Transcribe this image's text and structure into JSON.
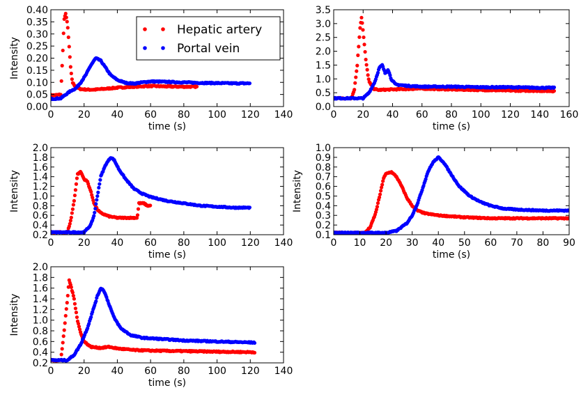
{
  "chart_data": [
    {
      "type": "scatter",
      "xlabel": "time (s)",
      "ylabel": "Intensity",
      "xlim": [
        0,
        140
      ],
      "ylim": [
        0.0,
        0.4
      ],
      "xticks": [
        0,
        20,
        40,
        60,
        80,
        100,
        120,
        140
      ],
      "yticks": [
        0.0,
        0.05,
        0.1,
        0.15,
        0.2,
        0.25,
        0.3,
        0.35,
        0.4
      ],
      "ytick_decimals": 2,
      "legend": {
        "position": "top-right",
        "entries": [
          "Hepatic artery",
          "Portal vein"
        ]
      },
      "series": [
        {
          "name": "Hepatic artery",
          "color": "#ff0000",
          "x_end": 88,
          "points": [
            [
              0,
              0.046
            ],
            [
              4,
              0.048
            ],
            [
              6,
              0.05
            ],
            [
              7,
              0.2
            ],
            [
              8,
              0.36
            ],
            [
              9,
              0.385
            ],
            [
              10,
              0.34
            ],
            [
              11,
              0.25
            ],
            [
              12,
              0.15
            ],
            [
              13,
              0.1
            ],
            [
              15,
              0.08
            ],
            [
              18,
              0.072
            ],
            [
              22,
              0.07
            ],
            [
              26,
              0.07
            ],
            [
              30,
              0.072
            ],
            [
              40,
              0.078
            ],
            [
              50,
              0.082
            ],
            [
              60,
              0.085
            ],
            [
              70,
              0.083
            ],
            [
              80,
              0.082
            ],
            [
              88,
              0.082
            ]
          ]
        },
        {
          "name": "Portal vein",
          "color": "#0000ff",
          "x_end": 120,
          "points": [
            [
              0,
              0.032
            ],
            [
              6,
              0.034
            ],
            [
              9,
              0.05
            ],
            [
              12,
              0.065
            ],
            [
              15,
              0.075
            ],
            [
              18,
              0.1
            ],
            [
              21,
              0.13
            ],
            [
              24,
              0.17
            ],
            [
              27,
              0.2
            ],
            [
              30,
              0.19
            ],
            [
              33,
              0.16
            ],
            [
              36,
              0.13
            ],
            [
              40,
              0.11
            ],
            [
              45,
              0.098
            ],
            [
              50,
              0.095
            ],
            [
              55,
              0.1
            ],
            [
              60,
              0.104
            ],
            [
              70,
              0.102
            ],
            [
              80,
              0.1
            ],
            [
              90,
              0.098
            ],
            [
              100,
              0.097
            ],
            [
              110,
              0.096
            ],
            [
              120,
              0.096
            ]
          ]
        }
      ]
    },
    {
      "type": "scatter",
      "xlabel": "time (s)",
      "ylabel": "",
      "xlim": [
        0,
        160
      ],
      "ylim": [
        0.0,
        3.5
      ],
      "xticks": [
        0,
        20,
        40,
        60,
        80,
        100,
        120,
        140,
        160
      ],
      "yticks": [
        0.0,
        0.5,
        1.0,
        1.5,
        2.0,
        2.5,
        3.0,
        3.5
      ],
      "ytick_decimals": 1,
      "series": [
        {
          "name": "Hepatic artery",
          "color": "#ff0000",
          "points": [
            [
              0,
              0.3
            ],
            [
              12,
              0.3
            ],
            [
              14,
              0.6
            ],
            [
              16,
              1.5
            ],
            [
              18,
              2.9
            ],
            [
              19,
              3.25
            ],
            [
              20,
              2.7
            ],
            [
              22,
              1.6
            ],
            [
              24,
              0.9
            ],
            [
              27,
              0.65
            ],
            [
              30,
              0.6
            ],
            [
              40,
              0.62
            ],
            [
              60,
              0.65
            ],
            [
              80,
              0.62
            ],
            [
              100,
              0.6
            ],
            [
              120,
              0.58
            ],
            [
              140,
              0.57
            ],
            [
              150,
              0.56
            ]
          ]
        },
        {
          "name": "Portal vein",
          "color": "#0000ff",
          "points": [
            [
              0,
              0.3
            ],
            [
              20,
              0.3
            ],
            [
              24,
              0.5
            ],
            [
              28,
              0.9
            ],
            [
              31,
              1.4
            ],
            [
              33,
              1.5
            ],
            [
              35,
              1.2
            ],
            [
              37,
              1.35
            ],
            [
              39,
              1.0
            ],
            [
              42,
              0.8
            ],
            [
              50,
              0.75
            ],
            [
              60,
              0.72
            ],
            [
              80,
              0.72
            ],
            [
              100,
              0.7
            ],
            [
              120,
              0.7
            ],
            [
              140,
              0.68
            ],
            [
              150,
              0.68
            ]
          ]
        }
      ]
    },
    {
      "type": "scatter",
      "xlabel": "time (s)",
      "ylabel": "Intensity",
      "xlim": [
        0,
        140
      ],
      "ylim": [
        0.2,
        2.0
      ],
      "xticks": [
        0,
        20,
        40,
        60,
        80,
        100,
        120,
        140
      ],
      "yticks": [
        0.2,
        0.4,
        0.6,
        0.8,
        1.0,
        1.2,
        1.4,
        1.6,
        1.8,
        2.0
      ],
      "ytick_decimals": 1,
      "series": [
        {
          "name": "Hepatic artery",
          "color": "#ff0000",
          "points": [
            [
              0,
              0.25
            ],
            [
              10,
              0.25
            ],
            [
              12,
              0.5
            ],
            [
              14,
              0.9
            ],
            [
              16,
              1.45
            ],
            [
              18,
              1.5
            ],
            [
              20,
              1.35
            ],
            [
              22,
              1.3
            ],
            [
              24,
              1.1
            ],
            [
              26,
              0.85
            ],
            [
              28,
              0.72
            ],
            [
              30,
              0.65
            ],
            [
              35,
              0.58
            ],
            [
              40,
              0.55
            ],
            [
              45,
              0.55
            ],
            [
              50,
              0.55
            ],
            [
              52,
              0.55
            ],
            [
              53,
              0.85
            ],
            [
              56,
              0.85
            ],
            [
              58,
              0.8
            ],
            [
              60,
              0.8
            ]
          ]
        },
        {
          "name": "Portal vein",
          "color": "#0000ff",
          "points": [
            [
              0,
              0.25
            ],
            [
              20,
              0.25
            ],
            [
              24,
              0.4
            ],
            [
              26,
              0.6
            ],
            [
              28,
              1.0
            ],
            [
              30,
              1.4
            ],
            [
              33,
              1.65
            ],
            [
              36,
              1.8
            ],
            [
              38,
              1.75
            ],
            [
              41,
              1.55
            ],
            [
              45,
              1.35
            ],
            [
              50,
              1.15
            ],
            [
              55,
              1.05
            ],
            [
              60,
              0.98
            ],
            [
              70,
              0.9
            ],
            [
              80,
              0.85
            ],
            [
              90,
              0.8
            ],
            [
              100,
              0.78
            ],
            [
              110,
              0.76
            ],
            [
              120,
              0.76
            ]
          ]
        }
      ]
    },
    {
      "type": "scatter",
      "xlabel": "time (s)",
      "ylabel": "Intensity",
      "xlim": [
        0,
        90
      ],
      "ylim": [
        0.1,
        1.0
      ],
      "xticks": [
        0,
        10,
        20,
        30,
        40,
        50,
        60,
        70,
        80,
        90
      ],
      "yticks": [
        0.1,
        0.2,
        0.3,
        0.4,
        0.5,
        0.6,
        0.7,
        0.8,
        0.9,
        1.0
      ],
      "ytick_decimals": 1,
      "series": [
        {
          "name": "Hepatic artery",
          "color": "#ff0000",
          "points": [
            [
              0,
              0.12
            ],
            [
              12,
              0.12
            ],
            [
              14,
              0.18
            ],
            [
              16,
              0.32
            ],
            [
              18,
              0.55
            ],
            [
              19,
              0.68
            ],
            [
              20,
              0.73
            ],
            [
              22,
              0.75
            ],
            [
              24,
              0.7
            ],
            [
              26,
              0.6
            ],
            [
              28,
              0.48
            ],
            [
              30,
              0.4
            ],
            [
              32,
              0.35
            ],
            [
              35,
              0.32
            ],
            [
              40,
              0.3
            ],
            [
              50,
              0.28
            ],
            [
              60,
              0.27
            ],
            [
              70,
              0.27
            ],
            [
              80,
              0.27
            ],
            [
              90,
              0.27
            ]
          ]
        },
        {
          "name": "Portal vein",
          "color": "#0000ff",
          "points": [
            [
              0,
              0.12
            ],
            [
              20,
              0.12
            ],
            [
              24,
              0.14
            ],
            [
              28,
              0.22
            ],
            [
              30,
              0.3
            ],
            [
              32,
              0.42
            ],
            [
              34,
              0.58
            ],
            [
              36,
              0.75
            ],
            [
              38,
              0.85
            ],
            [
              40,
              0.9
            ],
            [
              42,
              0.85
            ],
            [
              45,
              0.72
            ],
            [
              48,
              0.6
            ],
            [
              52,
              0.5
            ],
            [
              56,
              0.44
            ],
            [
              60,
              0.4
            ],
            [
              65,
              0.37
            ],
            [
              70,
              0.36
            ],
            [
              80,
              0.35
            ],
            [
              90,
              0.35
            ]
          ]
        }
      ]
    },
    {
      "type": "scatter",
      "xlabel": "time (s)",
      "ylabel": "Intensity",
      "xlim": [
        0,
        140
      ],
      "ylim": [
        0.2,
        2.0
      ],
      "xticks": [
        0,
        20,
        40,
        60,
        80,
        100,
        120,
        140
      ],
      "yticks": [
        0.2,
        0.4,
        0.6,
        0.8,
        1.0,
        1.2,
        1.4,
        1.6,
        1.8,
        2.0
      ],
      "ytick_decimals": 1,
      "series": [
        {
          "name": "Hepatic artery",
          "color": "#ff0000",
          "points": [
            [
              0,
              0.25
            ],
            [
              6,
              0.25
            ],
            [
              8,
              0.8
            ],
            [
              10,
              1.4
            ],
            [
              11,
              1.75
            ],
            [
              12,
              1.65
            ],
            [
              14,
              1.4
            ],
            [
              16,
              1.0
            ],
            [
              18,
              0.75
            ],
            [
              20,
              0.6
            ],
            [
              24,
              0.5
            ],
            [
              30,
              0.48
            ],
            [
              35,
              0.5
            ],
            [
              40,
              0.47
            ],
            [
              50,
              0.44
            ],
            [
              60,
              0.43
            ],
            [
              80,
              0.42
            ],
            [
              100,
              0.41
            ],
            [
              123,
              0.4
            ]
          ]
        },
        {
          "name": "Portal vein",
          "color": "#0000ff",
          "points": [
            [
              0,
              0.25
            ],
            [
              10,
              0.25
            ],
            [
              14,
              0.35
            ],
            [
              18,
              0.55
            ],
            [
              22,
              0.85
            ],
            [
              25,
              1.15
            ],
            [
              28,
              1.45
            ],
            [
              30,
              1.6
            ],
            [
              32,
              1.55
            ],
            [
              35,
              1.3
            ],
            [
              38,
              1.05
            ],
            [
              42,
              0.85
            ],
            [
              48,
              0.72
            ],
            [
              55,
              0.67
            ],
            [
              65,
              0.65
            ],
            [
              80,
              0.62
            ],
            [
              100,
              0.6
            ],
            [
              123,
              0.58
            ]
          ]
        }
      ]
    }
  ]
}
